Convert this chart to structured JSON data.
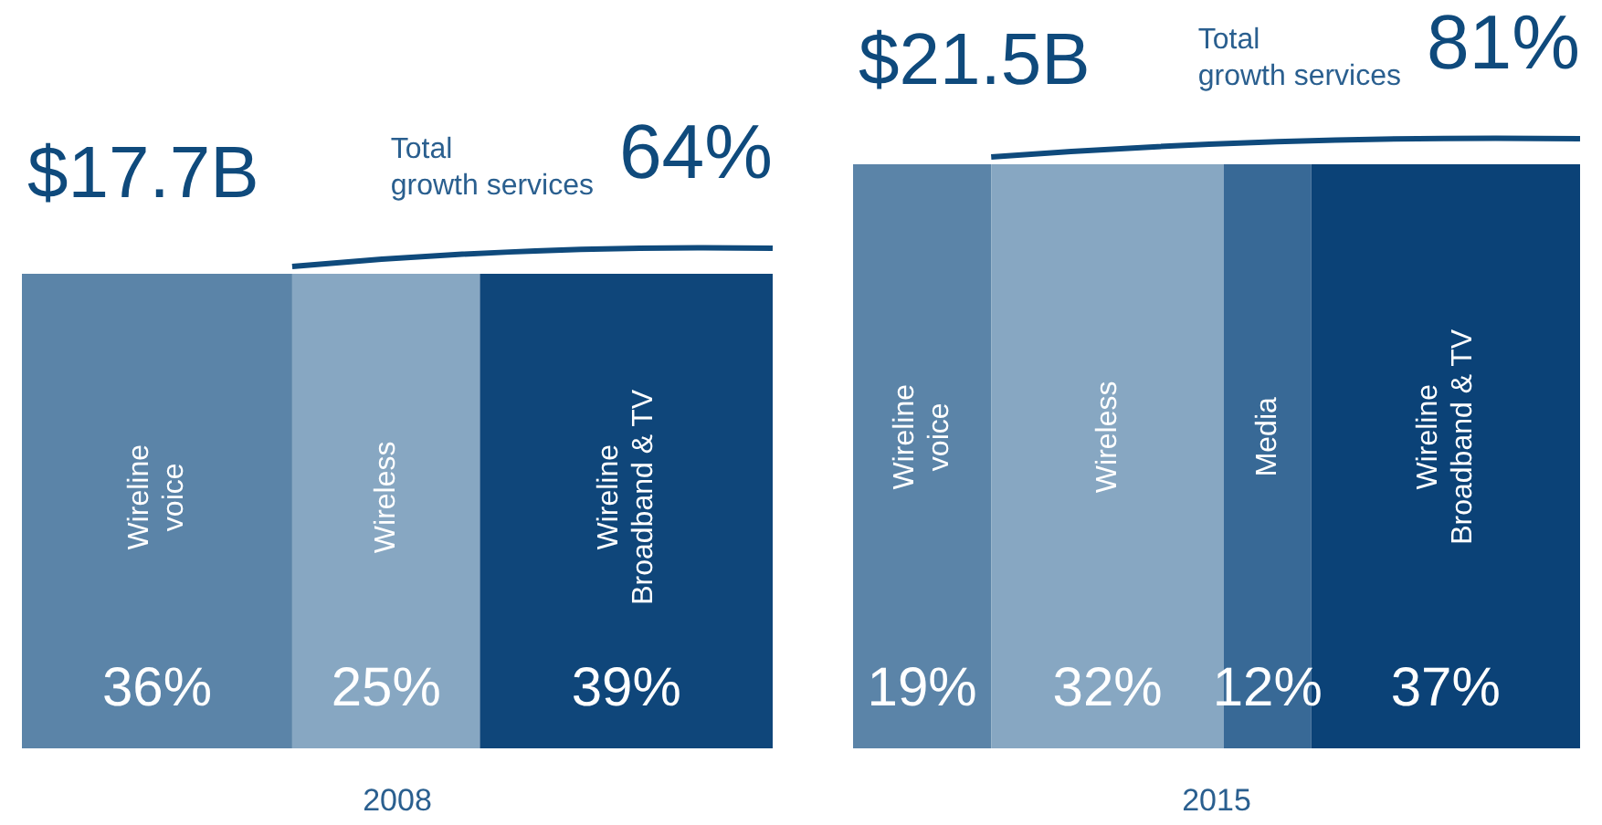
{
  "chart_data": [
    {
      "type": "bar",
      "orientation": "horizontal",
      "stacked": true,
      "title": "$17.7B",
      "xlabel": "2008",
      "categories": [
        null
      ],
      "xlim": [
        0,
        100
      ],
      "tick_labels": false,
      "annotations": [
        "Total growth services",
        "64%"
      ],
      "series": [
        {
          "name": "Wireline voice",
          "color": "#5b84a8",
          "values": [
            36
          ],
          "value_labels": [
            "36%"
          ]
        },
        {
          "name": "Wireless",
          "color": "#87a7c2",
          "values": [
            25
          ],
          "value_labels": [
            "25%"
          ]
        },
        {
          "name": "Wireline Broadband & TV",
          "color": "#0f467a",
          "values": [
            39
          ],
          "value_labels": [
            "39%"
          ]
        }
      ]
    },
    {
      "type": "bar",
      "orientation": "horizontal",
      "stacked": true,
      "title": "$21.5B",
      "xlabel": "2015",
      "categories": [
        null
      ],
      "xlim": [
        0,
        100
      ],
      "tick_labels": false,
      "annotations": [
        "Total growth services",
        "81%"
      ],
      "series": [
        {
          "name": "Wireline voice",
          "color": "#5b84a8",
          "values": [
            19
          ],
          "value_labels": [
            "19%"
          ]
        },
        {
          "name": "Wireless",
          "color": "#87a7c2",
          "values": [
            32
          ],
          "value_labels": [
            "32%"
          ]
        },
        {
          "name": "Media",
          "color": "#386996",
          "values": [
            12
          ],
          "value_labels": [
            "12%"
          ]
        },
        {
          "name": "Wireline Broadband & TV",
          "color": "#0b4277",
          "values": [
            37
          ],
          "value_labels": [
            "37%"
          ]
        }
      ]
    }
  ]
}
